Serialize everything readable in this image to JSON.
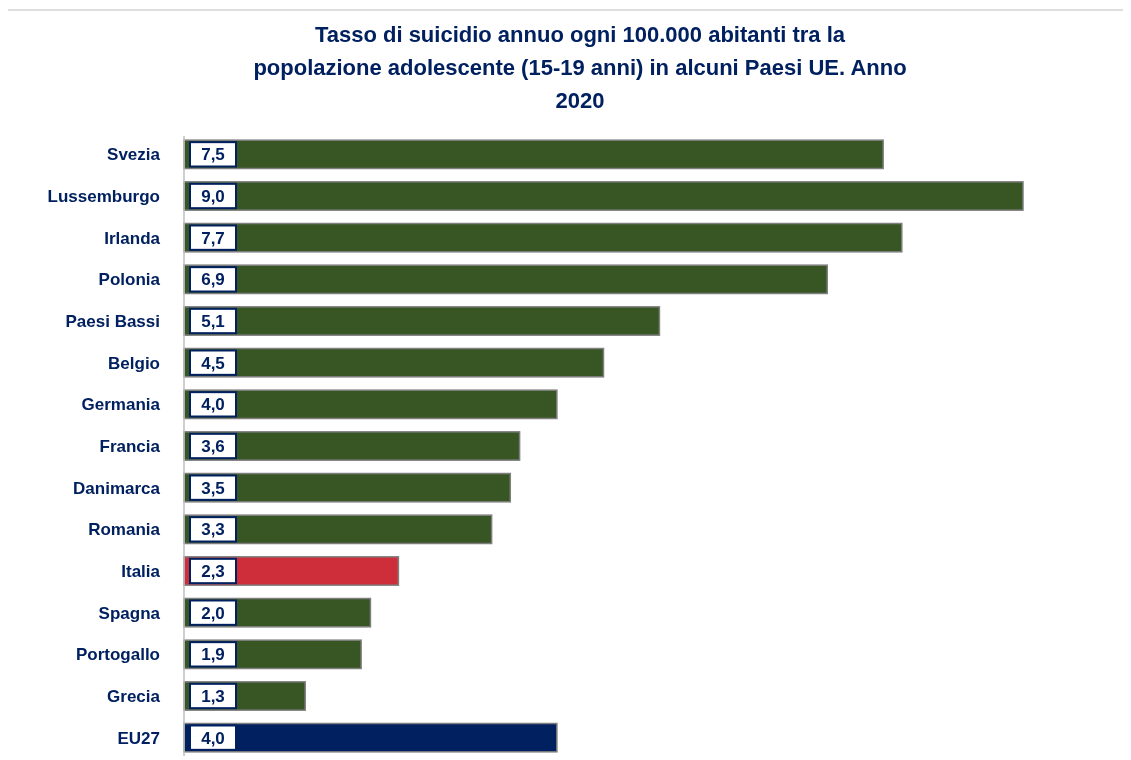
{
  "chart_data": {
    "type": "bar",
    "orientation": "horizontal",
    "title": "Tasso di suicidio annuo ogni 100.000 abitanti tra la popolazione adolescente (15-19 anni) in alcuni Paesi UE. Anno 2020",
    "categories": [
      "Svezia",
      "Lussemburgo",
      "Irlanda",
      "Polonia",
      "Paesi Bassi",
      "Belgio",
      "Germania",
      "Francia",
      "Danimarca",
      "Romania",
      "Italia",
      "Spagna",
      "Portogallo",
      "Grecia",
      "EU27"
    ],
    "values": [
      7.5,
      9.0,
      7.7,
      6.9,
      5.1,
      4.5,
      4.0,
      3.6,
      3.5,
      3.3,
      2.3,
      2.0,
      1.9,
      1.3,
      4.0
    ],
    "value_labels": [
      "7,5",
      "9,0",
      "7,7",
      "6,9",
      "5,1",
      "4,5",
      "4,0",
      "3,6",
      "3,5",
      "3,3",
      "2,3",
      "2,0",
      "1,9",
      "1,3",
      "4,0"
    ],
    "colors": [
      "#375623",
      "#375623",
      "#375623",
      "#375623",
      "#375623",
      "#375623",
      "#375623",
      "#375623",
      "#375623",
      "#375623",
      "#cd2e3a",
      "#375623",
      "#375623",
      "#375623",
      "#002060"
    ]
  }
}
